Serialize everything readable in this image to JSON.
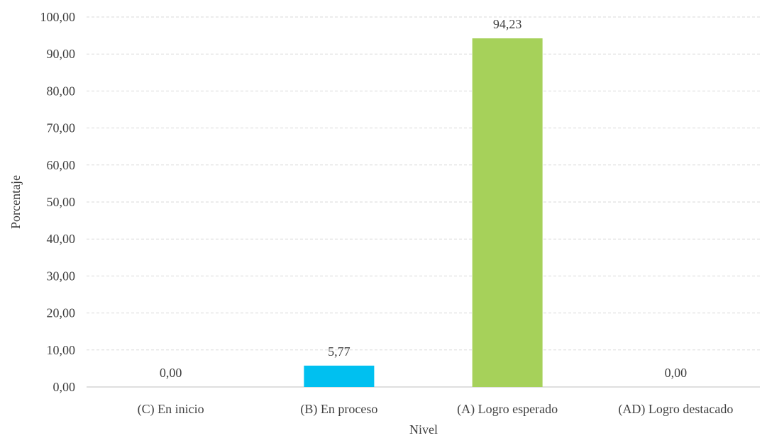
{
  "chart_data": {
    "type": "bar",
    "categories": [
      "(C) En inicio",
      "(B) En proceso",
      "(A) Logro esperado",
      "(AD) Logro destacado"
    ],
    "values": [
      0.0,
      5.77,
      94.23,
      0.0
    ],
    "data_labels": [
      "0,00",
      "5,77",
      "94,23",
      "0,00"
    ],
    "bar_colors": [
      "#00c0f0",
      "#00c0f0",
      "#a6d15a",
      "#a6d15a"
    ],
    "title": "",
    "xlabel": "Nivel",
    "ylabel": "Porcentaje",
    "ylim": [
      0,
      100
    ],
    "yticks": [
      0,
      10,
      20,
      30,
      40,
      50,
      60,
      70,
      80,
      90,
      100
    ],
    "ytick_labels": [
      "0,00",
      "10,00",
      "20,00",
      "30,00",
      "40,00",
      "50,00",
      "60,00",
      "70,00",
      "80,00",
      "90,00",
      "100,00"
    ],
    "grid": true,
    "legend": "none"
  }
}
